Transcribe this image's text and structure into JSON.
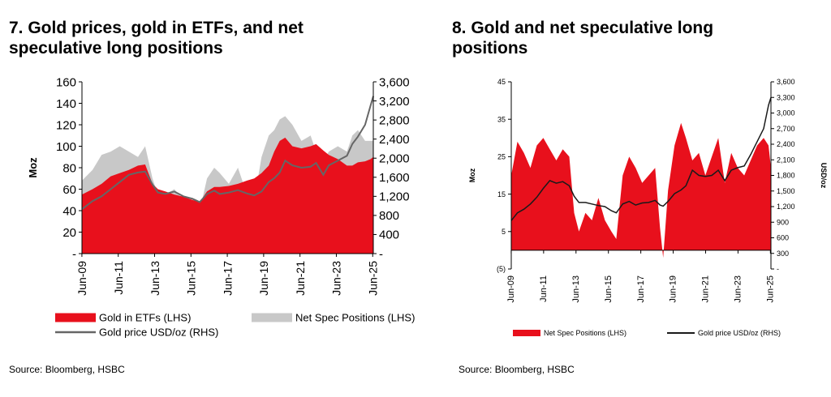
{
  "colors": {
    "red": "#e8101c",
    "grey": "#c8c8c8",
    "price_left": "#666666",
    "price_right": "#1a1a1a"
  },
  "chart_data": [
    {
      "id": "chart7",
      "type": "area",
      "title_lines": [
        "7. Gold prices, gold in ETFs, and net",
        "speculative long positions"
      ],
      "ylabel": "Moz",
      "y2label": "",
      "source": "Source: Bloomberg, HSBC",
      "ylim": [
        0,
        160
      ],
      "y_ticks": [
        "-",
        "20",
        "40",
        "60",
        "80",
        "100",
        "120",
        "140",
        "160"
      ],
      "y2lim": [
        0,
        3600
      ],
      "y2_ticks": [
        "-",
        "400",
        "800",
        "1,200",
        "1,600",
        "2,000",
        "2,400",
        "2,800",
        "3,200",
        "3,600"
      ],
      "x_ticks": [
        "Jun-09",
        "Jun-11",
        "Jun-13",
        "Jun-15",
        "Jun-17",
        "Jun-19",
        "Jun-21",
        "Jun-23",
        "Jun-25"
      ],
      "legend": [
        {
          "label": "Gold in ETFs (LHS)",
          "kind": "area",
          "color": "#e8101c"
        },
        {
          "label": "Net Spec Positions (LHS)",
          "kind": "area",
          "color": "#c8c8c8"
        },
        {
          "label": "Gold price USD/oz (RHS)",
          "kind": "line",
          "color": "#666666"
        }
      ],
      "x_years": [
        2009.42,
        2010.0,
        2010.5,
        2011.0,
        2011.5,
        2012.0,
        2012.5,
        2012.9,
        2013.3,
        2013.6,
        2014.0,
        2014.5,
        2015.0,
        2015.5,
        2015.9,
        2016.3,
        2016.7,
        2017.0,
        2017.5,
        2018.0,
        2018.5,
        2018.9,
        2019.3,
        2019.7,
        2020.0,
        2020.3,
        2020.6,
        2021.0,
        2021.5,
        2022.0,
        2022.3,
        2022.7,
        2023.0,
        2023.5,
        2024.0,
        2024.3,
        2024.6,
        2025.0,
        2025.3,
        2025.45
      ],
      "series": [
        {
          "name": "Net Spec Positions (LHS)",
          "values": [
            68,
            78,
            92,
            95,
            100,
            95,
            90,
            100,
            70,
            55,
            55,
            60,
            50,
            45,
            40,
            70,
            80,
            75,
            65,
            80,
            55,
            50,
            90,
            110,
            115,
            125,
            128,
            120,
            105,
            110,
            95,
            85,
            95,
            100,
            95,
            110,
            115,
            105,
            105,
            105
          ]
        },
        {
          "name": "Gold in ETFs (LHS)",
          "values": [
            55,
            60,
            65,
            72,
            75,
            78,
            82,
            83,
            65,
            60,
            58,
            55,
            53,
            50,
            48,
            58,
            62,
            62,
            63,
            65,
            68,
            70,
            75,
            82,
            95,
            105,
            108,
            100,
            98,
            100,
            102,
            96,
            92,
            88,
            82,
            82,
            85,
            86,
            88,
            90
          ]
        },
        {
          "name": "Gold price USD/oz (RHS)",
          "values": [
            930,
            1100,
            1200,
            1350,
            1500,
            1650,
            1700,
            1720,
            1450,
            1280,
            1250,
            1300,
            1200,
            1150,
            1080,
            1250,
            1320,
            1250,
            1280,
            1330,
            1260,
            1220,
            1300,
            1500,
            1580,
            1700,
            1950,
            1850,
            1800,
            1820,
            1900,
            1650,
            1850,
            1950,
            2050,
            2300,
            2450,
            2700,
            3100,
            3300
          ]
        }
      ]
    },
    {
      "id": "chart8",
      "type": "area",
      "title_lines": [
        "8. Gold and net speculative long",
        "positions"
      ],
      "ylabel": "Moz",
      "y2label": "USD/oz",
      "source": "Source: Bloomberg, HSBC",
      "ylim": [
        -5,
        45
      ],
      "y_ticks": [
        "(5)",
        "5",
        "15",
        "25",
        "35",
        "45"
      ],
      "y2lim": [
        0,
        3600
      ],
      "y2_ticks": [
        "-",
        "300",
        "600",
        "900",
        "1,200",
        "1,500",
        "1,800",
        "2,100",
        "2,400",
        "2,700",
        "3,000",
        "3,300",
        "3,600"
      ],
      "x_ticks": [
        "Jun-09",
        "Jun-11",
        "Jun-13",
        "Jun-15",
        "Jun-17",
        "Jun-19",
        "Jun-21",
        "Jun-23",
        "Jun-25"
      ],
      "legend": [
        {
          "label": "Net Spec Positions (LHS)",
          "kind": "area",
          "color": "#e8101c"
        },
        {
          "label": "Gold price USD/oz (RHS)",
          "kind": "line",
          "color": "#1a1a1a"
        }
      ],
      "x_years": [
        2009.42,
        2009.8,
        2010.2,
        2010.6,
        2011.0,
        2011.4,
        2011.8,
        2012.2,
        2012.6,
        2013.0,
        2013.3,
        2013.6,
        2014.0,
        2014.4,
        2014.8,
        2015.2,
        2015.6,
        2015.9,
        2016.3,
        2016.7,
        2017.1,
        2017.5,
        2017.9,
        2018.3,
        2018.6,
        2018.8,
        2019.1,
        2019.5,
        2019.9,
        2020.2,
        2020.6,
        2021.0,
        2021.4,
        2021.8,
        2022.2,
        2022.6,
        2023.0,
        2023.4,
        2023.8,
        2024.2,
        2024.6,
        2025.0,
        2025.3,
        2025.45
      ],
      "series": [
        {
          "name": "Net Spec Positions (LHS)",
          "values": [
            20,
            29,
            26,
            22,
            28,
            30,
            27,
            24,
            27,
            25,
            10,
            5,
            10,
            8,
            14,
            8,
            5,
            3,
            20,
            25,
            22,
            18,
            20,
            22,
            6,
            -2,
            16,
            28,
            34,
            30,
            24,
            26,
            20,
            25,
            30,
            18,
            26,
            22,
            20,
            24,
            28,
            30,
            28,
            22
          ]
        },
        {
          "name": "Gold price USD/oz (RHS)",
          "values": [
            930,
            1080,
            1150,
            1250,
            1380,
            1550,
            1700,
            1650,
            1680,
            1600,
            1400,
            1280,
            1280,
            1250,
            1220,
            1200,
            1120,
            1080,
            1250,
            1300,
            1230,
            1270,
            1280,
            1320,
            1230,
            1210,
            1300,
            1450,
            1520,
            1600,
            1900,
            1800,
            1780,
            1800,
            1900,
            1700,
            1900,
            1950,
            1980,
            2200,
            2450,
            2700,
            3150,
            3300
          ]
        }
      ]
    }
  ]
}
